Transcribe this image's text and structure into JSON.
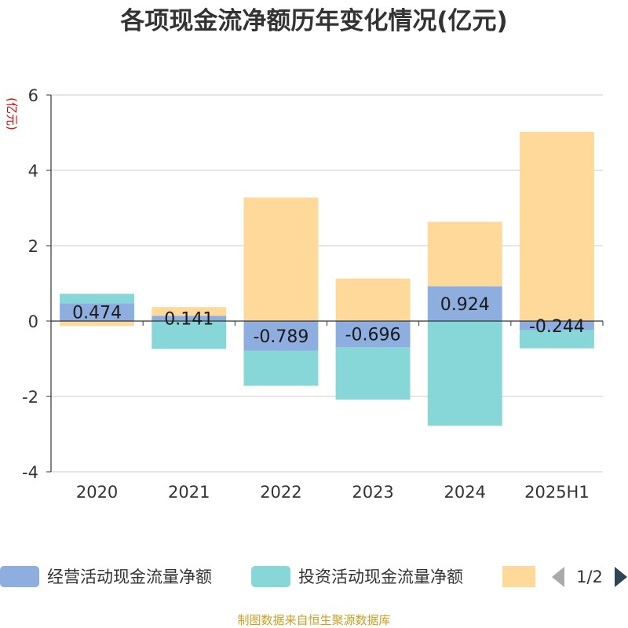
{
  "colors": {
    "operating": "#8eaee0",
    "investing": "#87d6d8",
    "financing": "#fed99a",
    "grid": "#cccccc",
    "axis": "#333333",
    "unit": "#e60000",
    "source": "#c8a025",
    "pager_arrow_disabled": "#aaaaaa",
    "pager_arrow_active": "#2f4554"
  },
  "legend": {
    "items": [
      {
        "label": "经营活动现金流量净额",
        "color_key": "operating"
      },
      {
        "label": "投资活动现金流量净额",
        "color_key": "investing"
      },
      {
        "label": "",
        "color_key": "financing"
      }
    ],
    "page_label": "1/2",
    "prev_icon": "triangle-left-icon",
    "next_icon": "triangle-right-icon"
  },
  "source_text": "制图数据来自恒生聚源数据库",
  "chart_data": {
    "type": "bar",
    "stacked": true,
    "title": "各项现金流净额历年变化情况(亿元)",
    "ylabel": "(亿元)",
    "xlabel": "",
    "ylim": [
      -4,
      6
    ],
    "yticks": [
      -4,
      -2,
      0,
      2,
      4,
      6
    ],
    "grid": true,
    "categories": [
      "2020",
      "2021",
      "2022",
      "2023",
      "2024",
      "2025H1"
    ],
    "series": [
      {
        "name": "经营活动现金流量净额",
        "color_key": "operating",
        "values": [
          0.474,
          0.141,
          -0.789,
          -0.696,
          0.924,
          -0.244
        ],
        "labels": [
          "0.474",
          "0.141",
          "-0.789",
          "-0.696",
          "0.924",
          "-0.244"
        ]
      },
      {
        "name": "投资活动现金流量净额",
        "color_key": "investing",
        "values": [
          0.25,
          -0.74,
          -0.93,
          -1.39,
          -2.78,
          -0.48
        ]
      },
      {
        "color_key": "financing",
        "values": [
          -0.13,
          0.23,
          3.28,
          1.13,
          1.71,
          5.02
        ]
      }
    ]
  }
}
